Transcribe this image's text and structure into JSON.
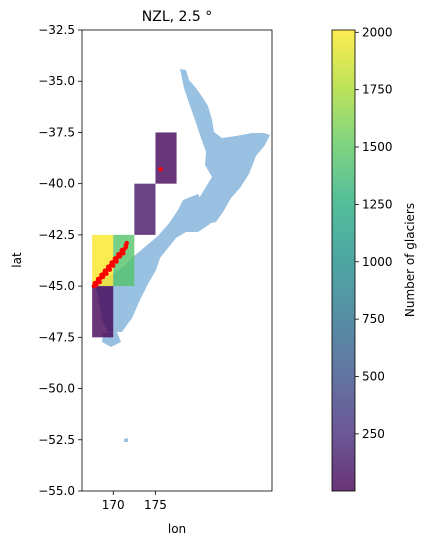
{
  "chart_data": {
    "type": "heatmap",
    "title": "NZL, 2.5 °",
    "xlabel": "lon",
    "ylabel": "lat",
    "xlim": [
      166.3,
      188.8
    ],
    "ylim": [
      -55,
      -32.5
    ],
    "xticks": [
      170,
      175
    ],
    "yticks": [
      -32.5,
      -35.0,
      -37.5,
      -40.0,
      -42.5,
      -45.0,
      -47.5,
      -50.0,
      -52.5,
      -55.0
    ],
    "grid": false,
    "cell_size_deg": 2.5,
    "cells": [
      {
        "lon_min": 167.5,
        "lat_min": -45.0,
        "count": 2000
      },
      {
        "lon_min": 170.0,
        "lat_min": -45.0,
        "count": 1450
      },
      {
        "lon_min": 172.5,
        "lat_min": -42.5,
        "count": 110
      },
      {
        "lon_min": 175.0,
        "lat_min": -40.0,
        "count": 25
      },
      {
        "lon_min": 167.5,
        "lat_min": -47.5,
        "count": 10
      }
    ],
    "glacier_points": [
      [
        167.7,
        -45.0
      ],
      [
        167.9,
        -44.9
      ],
      [
        168.1,
        -44.8
      ],
      [
        168.3,
        -44.7
      ],
      [
        168.5,
        -44.6
      ],
      [
        168.7,
        -44.5
      ],
      [
        168.9,
        -44.4
      ],
      [
        169.1,
        -44.3
      ],
      [
        169.3,
        -44.2
      ],
      [
        169.5,
        -44.1
      ],
      [
        169.7,
        -44.0
      ],
      [
        169.9,
        -43.9
      ],
      [
        170.1,
        -43.8
      ],
      [
        170.3,
        -43.7
      ],
      [
        170.5,
        -43.6
      ],
      [
        170.7,
        -43.5
      ],
      [
        170.9,
        -43.4
      ],
      [
        171.1,
        -43.3
      ],
      [
        171.3,
        -43.2
      ],
      [
        171.5,
        -43.0
      ],
      [
        171.6,
        -42.9
      ],
      [
        168.0,
        -44.95
      ],
      [
        168.4,
        -44.8
      ],
      [
        168.8,
        -44.55
      ],
      [
        169.2,
        -44.4
      ],
      [
        169.6,
        -44.2
      ],
      [
        170.0,
        -44.0
      ],
      [
        170.4,
        -43.8
      ],
      [
        170.8,
        -43.55
      ],
      [
        171.2,
        -43.4
      ],
      [
        171.5,
        -43.1
      ],
      [
        167.8,
        -44.85
      ],
      [
        168.2,
        -44.65
      ],
      [
        168.6,
        -44.45
      ],
      [
        169.0,
        -44.25
      ],
      [
        169.4,
        -44.05
      ],
      [
        169.8,
        -43.85
      ],
      [
        170.2,
        -43.65
      ],
      [
        170.6,
        -43.45
      ],
      [
        171.0,
        -43.25
      ],
      [
        175.6,
        -39.3
      ]
    ],
    "colorbar": {
      "label": "Number of glaciers",
      "ticks": [
        250,
        500,
        750,
        1000,
        1250,
        1500,
        1750,
        2000
      ],
      "range": [
        1,
        2010
      ],
      "colormap": "viridis"
    },
    "colors": {
      "land": "#8fb8dc",
      "glaciers": "#ff0000",
      "cell_alpha": 0.8
    }
  }
}
